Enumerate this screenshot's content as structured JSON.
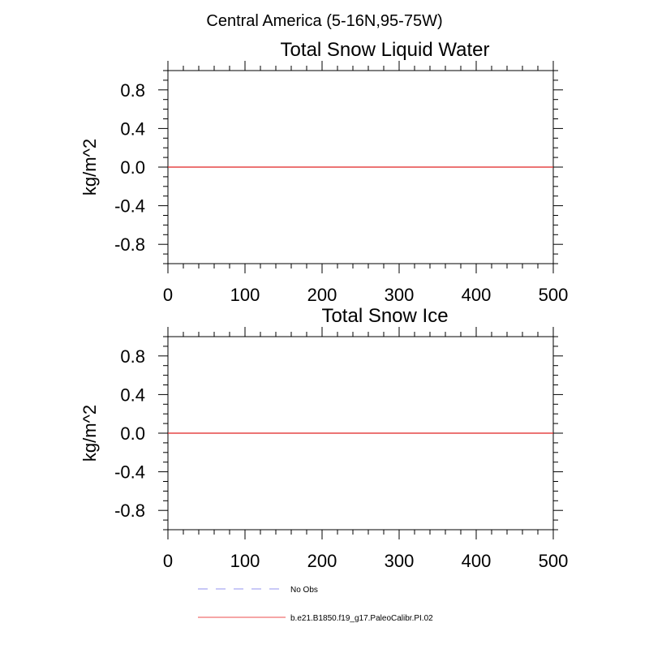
{
  "suptitle": "Central America (5-16N,95-75W)",
  "legend": [
    {
      "label": "No Obs",
      "color": "#a9a9f2",
      "style": "dashed"
    },
    {
      "label": "b.e21.B1850.f19_g17.PaleoCalibr.PI.02",
      "color": "#f07070",
      "style": "solid"
    }
  ],
  "chart_data": [
    {
      "type": "line",
      "title": "Total Snow Liquid Water",
      "ylabel": "kg/m^2",
      "xlabel": "",
      "xlim": [
        0,
        500
      ],
      "ylim": [
        -1,
        1
      ],
      "xticks": [
        0,
        100,
        200,
        300,
        400,
        500
      ],
      "xtick_labels": [
        "0",
        "100",
        "200",
        "300",
        "400",
        "500"
      ],
      "yticks": [
        0.8,
        0.4,
        0.0,
        -0.4,
        -0.8
      ],
      "ytick_labels": [
        "0.8",
        "0.4",
        "0.0",
        "-0.4",
        "-0.8"
      ],
      "grid": false,
      "series": [
        {
          "name": "b.e21.B1850.f19_g17.PaleoCalibr.PI.02",
          "color": "#e02020",
          "x": [
            0,
            500
          ],
          "y": [
            0,
            0
          ]
        }
      ]
    },
    {
      "type": "line",
      "title": "Total Snow Ice",
      "ylabel": "kg/m^2",
      "xlabel": "",
      "xlim": [
        0,
        500
      ],
      "ylim": [
        -1,
        1
      ],
      "xticks": [
        0,
        100,
        200,
        300,
        400,
        500
      ],
      "xtick_labels": [
        "0",
        "100",
        "200",
        "300",
        "400",
        "500"
      ],
      "yticks": [
        0.8,
        0.4,
        0.0,
        -0.4,
        -0.8
      ],
      "ytick_labels": [
        "0.8",
        "0.4",
        "0.0",
        "-0.4",
        "-0.8"
      ],
      "grid": false,
      "series": [
        {
          "name": "b.e21.B1850.f19_g17.PaleoCalibr.PI.02",
          "color": "#e02020",
          "x": [
            0,
            500
          ],
          "y": [
            0,
            0
          ]
        }
      ]
    }
  ]
}
